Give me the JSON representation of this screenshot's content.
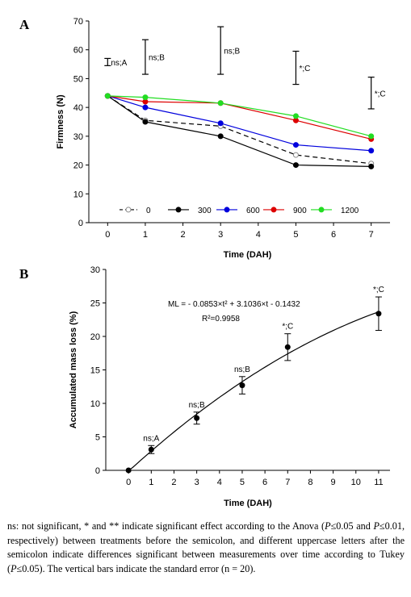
{
  "panel_labels": [
    "A",
    "B"
  ],
  "chart_data": [
    {
      "type": "line",
      "panel": "A",
      "title": "",
      "xlabel": "Time (DAH)",
      "ylabel": "Firmness (N)",
      "xlim": [
        -0.5,
        7.5
      ],
      "ylim": [
        0,
        70
      ],
      "xticks": [
        0,
        1,
        2,
        3,
        4,
        5,
        6,
        7
      ],
      "yticks": [
        0,
        10,
        20,
        30,
        40,
        50,
        60,
        70
      ],
      "grid": false,
      "legend_position": "bottom-left, horizontal",
      "x": [
        0,
        1,
        3,
        5,
        7
      ],
      "series": [
        {
          "name": "0",
          "color": "#000000",
          "marker": "open-circle",
          "dashed": true,
          "values": [
            44,
            35.5,
            33.5,
            23.5,
            20.5
          ]
        },
        {
          "name": "300",
          "color": "#000000",
          "marker": "filled-circle",
          "dashed": false,
          "values": [
            44,
            35,
            30,
            20,
            19.5
          ]
        },
        {
          "name": "600",
          "color": "#0000dd",
          "marker": "filled-circle",
          "dashed": false,
          "values": [
            44,
            40,
            34.5,
            27,
            25
          ]
        },
        {
          "name": "900",
          "color": "#dd0000",
          "marker": "filled-circle",
          "dashed": false,
          "values": [
            44,
            42,
            41.5,
            35.5,
            29
          ]
        },
        {
          "name": "1200",
          "color": "#22dd22",
          "marker": "filled-circle",
          "dashed": false,
          "values": [
            44,
            43.5,
            41.5,
            37,
            30
          ]
        }
      ],
      "error_bars": [
        {
          "x": 0,
          "low": 54.5,
          "high": 57,
          "label": "ns;A"
        },
        {
          "x": 1,
          "low": 51.5,
          "high": 63.5,
          "label": "ns;B"
        },
        {
          "x": 3,
          "low": 51.5,
          "high": 68,
          "label": "ns;B"
        },
        {
          "x": 5,
          "low": 48,
          "high": 59.5,
          "label": "*;C"
        },
        {
          "x": 7,
          "low": 39.5,
          "high": 50.5,
          "label": "*;C"
        }
      ]
    },
    {
      "type": "scatter",
      "panel": "B",
      "title": "",
      "xlabel": "Time (DAH)",
      "ylabel": "Accumulated mass loss (%)",
      "xlim": [
        -1,
        11.5
      ],
      "ylim": [
        0,
        30
      ],
      "xticks": [
        0,
        1,
        2,
        3,
        4,
        5,
        6,
        7,
        8,
        9,
        10,
        11
      ],
      "yticks": [
        0,
        5,
        10,
        15,
        20,
        25,
        30
      ],
      "grid": false,
      "points": [
        {
          "x": 0,
          "y": 0,
          "err": 0,
          "label": ""
        },
        {
          "x": 1,
          "y": 3.1,
          "err": 0.6,
          "label": "ns;A"
        },
        {
          "x": 3,
          "y": 7.8,
          "err": 0.9,
          "label": "ns;B"
        },
        {
          "x": 5,
          "y": 12.7,
          "err": 1.3,
          "label": "ns;B"
        },
        {
          "x": 7,
          "y": 18.4,
          "err": 2.0,
          "label": "*;C"
        },
        {
          "x": 11,
          "y": 23.4,
          "err": 2.5,
          "label": "*;C"
        }
      ],
      "fit": {
        "a": -0.0853,
        "b": 3.1036,
        "c": -0.1432,
        "x_range": [
          0,
          11
        ]
      },
      "equation": "ML = - 0.0853×t² + 3.1036×t - 0.1432",
      "r2": "R²=0.9958"
    }
  ],
  "caption": {
    "line1_a": "ns: not significant, * and ** indicate significant effect according to the Anova (",
    "p_italic": "P",
    "line1_b": "≤0.05",
    "line2_a": "and ",
    "line2_b": "≤0.01, respectively) between treatments before the semicolon, and different",
    "line3": "uppercase letters after the semicolon indicate differences significant between",
    "line4_a": "measurements over time according to Tukey (",
    "line4_b": "≤0.05). The vertical bars indicate the",
    "line5": "standard error (n = 20)."
  }
}
